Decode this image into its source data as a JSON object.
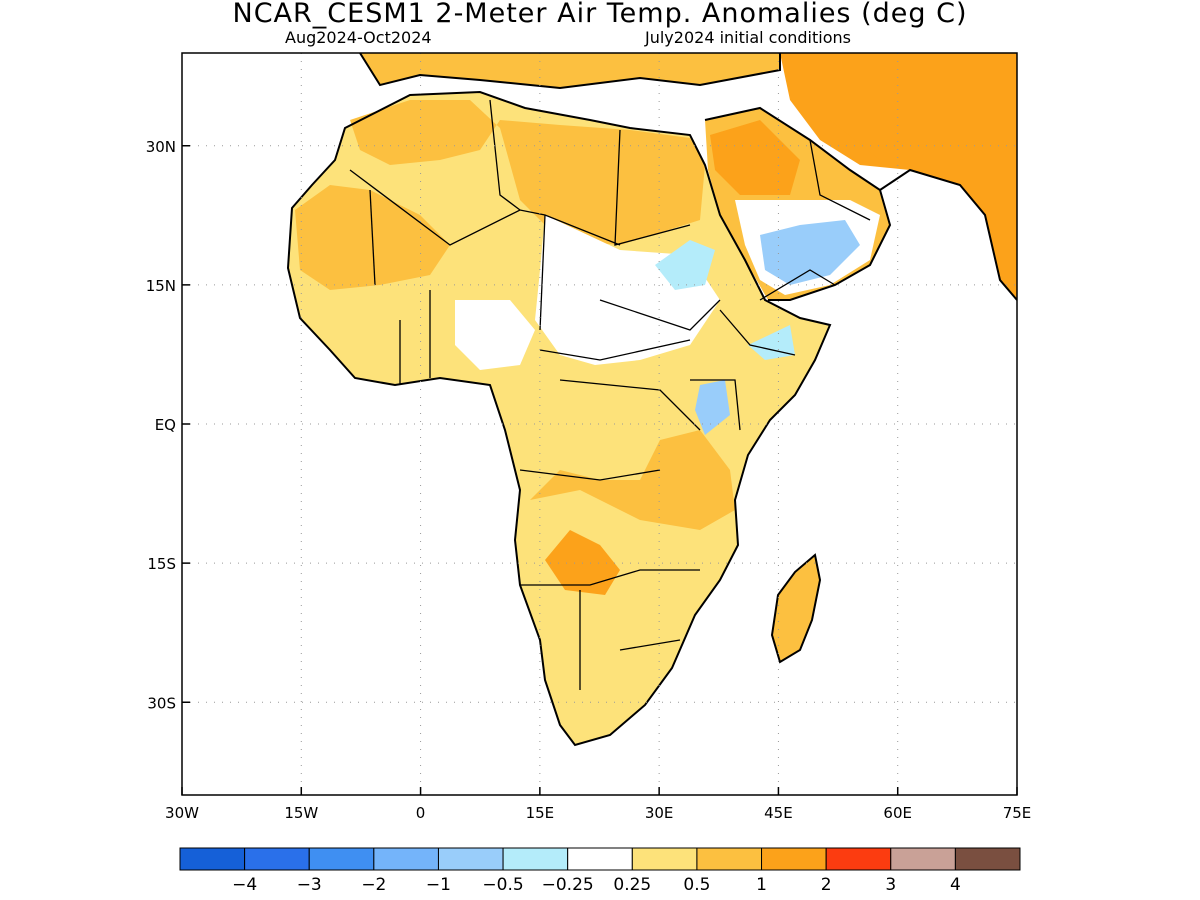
{
  "title": "NCAR_CESM1 2-Meter Air Temp. Anomalies (deg C)",
  "subtitle_left": "Aug2024-Oct2024",
  "subtitle_right": "July2024 initial conditions",
  "axes": {
    "lon_ticks": [
      {
        "value": -30,
        "label": "30W"
      },
      {
        "value": -15,
        "label": "15W"
      },
      {
        "value": 0,
        "label": "0"
      },
      {
        "value": 15,
        "label": "15E"
      },
      {
        "value": 30,
        "label": "30E"
      },
      {
        "value": 45,
        "label": "45E"
      },
      {
        "value": 60,
        "label": "60E"
      },
      {
        "value": 75,
        "label": "75E"
      }
    ],
    "lat_ticks": [
      {
        "value": 30,
        "label": "30N"
      },
      {
        "value": 15,
        "label": "15N"
      },
      {
        "value": 0,
        "label": "EQ"
      },
      {
        "value": -15,
        "label": "15S"
      },
      {
        "value": -30,
        "label": "30S"
      }
    ],
    "lon_range": [
      -30,
      75
    ],
    "lat_range": [
      -40,
      40
    ],
    "grid": "dotted"
  },
  "colorbar": {
    "colors": [
      "#1560d8",
      "#2a70ea",
      "#3f8ff2",
      "#74b4fa",
      "#99cdfa",
      "#b4ecfa",
      "#ffffff",
      "#fde27a",
      "#fcc040",
      "#fca21a",
      "#fc3c10",
      "#c9a197",
      "#7a4f40"
    ],
    "labels": [
      "-4",
      "-3",
      "-2",
      "-1",
      "-0.5",
      "-0.25",
      "0.25",
      "0.5",
      "1",
      "2",
      "3",
      "4"
    ]
  }
}
